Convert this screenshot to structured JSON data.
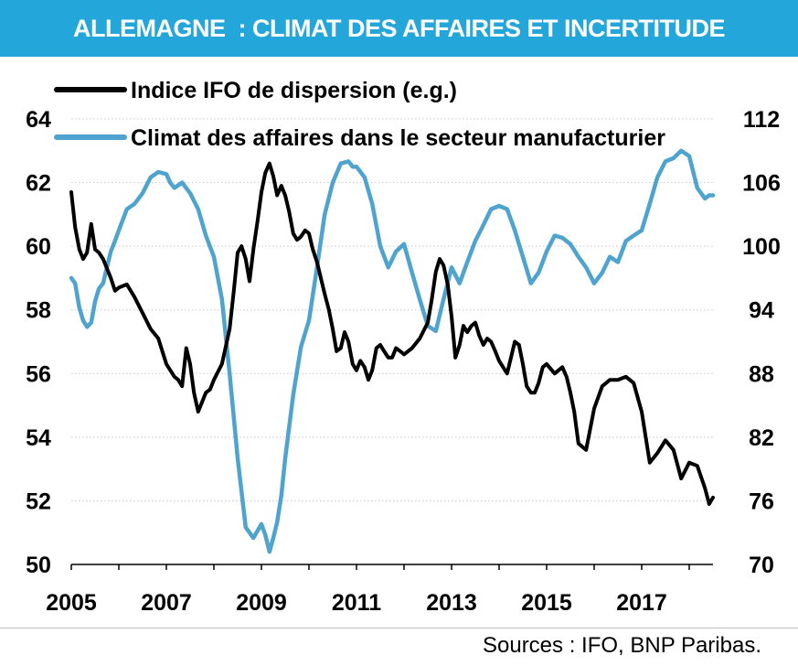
{
  "header": {
    "title": "ALLEMAGNE  : CLIMAT DES AFFAIRES ET INCERTITUDE",
    "bg_color": "#23a6d9",
    "text_color": "#ffffff"
  },
  "footer": {
    "source": "Sources : IFO, BNP Paribas."
  },
  "chart_data": {
    "type": "line",
    "title": "ALLEMAGNE  : CLIMAT DES AFFAIRES ET INCERTITUDE",
    "xlabel": "",
    "x_ticks": [
      "2005",
      "2007",
      "2009",
      "2011",
      "2013",
      "2015",
      "2017"
    ],
    "xlim": [
      2005,
      2018.5
    ],
    "left_axis": {
      "ticks": [
        "64",
        "62",
        "60",
        "58",
        "56",
        "54",
        "52",
        "50"
      ],
      "ylim": [
        50,
        64
      ]
    },
    "right_axis": {
      "ticks": [
        "112",
        "106",
        "100",
        "94",
        "88",
        "82",
        "76",
        "70"
      ],
      "ylim": [
        70,
        112
      ]
    },
    "grid": "horizontal dotted",
    "legend_placement": "top-left",
    "series": [
      {
        "name": "Indice IFO de dispersion (e.g.)",
        "color": "#000000",
        "axis": "left",
        "x": [
          2005.0,
          2005.08,
          2005.17,
          2005.25,
          2005.33,
          2005.42,
          2005.5,
          2005.58,
          2005.67,
          2005.75,
          2005.83,
          2005.92,
          2006.0,
          2006.17,
          2006.33,
          2006.5,
          2006.67,
          2006.83,
          2007.0,
          2007.17,
          2007.25,
          2007.33,
          2007.42,
          2007.5,
          2007.58,
          2007.67,
          2007.75,
          2007.83,
          2007.92,
          2008.0,
          2008.17,
          2008.33,
          2008.42,
          2008.5,
          2008.58,
          2008.67,
          2008.75,
          2008.83,
          2008.92,
          2009.0,
          2009.08,
          2009.17,
          2009.25,
          2009.33,
          2009.42,
          2009.5,
          2009.58,
          2009.67,
          2009.75,
          2009.83,
          2009.92,
          2010.0,
          2010.08,
          2010.17,
          2010.25,
          2010.33,
          2010.42,
          2010.5,
          2010.58,
          2010.67,
          2010.75,
          2010.83,
          2010.92,
          2011.0,
          2011.08,
          2011.17,
          2011.25,
          2011.33,
          2011.42,
          2011.5,
          2011.58,
          2011.67,
          2011.75,
          2011.83,
          2011.92,
          2012.0,
          2012.17,
          2012.33,
          2012.5,
          2012.58,
          2012.67,
          2012.75,
          2012.83,
          2012.92,
          2013.0,
          2013.08,
          2013.17,
          2013.25,
          2013.33,
          2013.42,
          2013.5,
          2013.58,
          2013.67,
          2013.75,
          2013.83,
          2013.92,
          2014.0,
          2014.17,
          2014.25,
          2014.33,
          2014.42,
          2014.5,
          2014.58,
          2014.67,
          2014.75,
          2014.83,
          2014.92,
          2015.0,
          2015.17,
          2015.33,
          2015.42,
          2015.5,
          2015.58,
          2015.67,
          2015.83,
          2016.0,
          2016.17,
          2016.33,
          2016.5,
          2016.67,
          2016.83,
          2017.0,
          2017.17,
          2017.33,
          2017.5,
          2017.67,
          2017.83,
          2018.0,
          2018.17,
          2018.33,
          2018.42
        ],
        "values": [
          61.7,
          60.6,
          59.9,
          59.6,
          59.8,
          60.7,
          59.9,
          59.8,
          59.6,
          59.3,
          59.0,
          58.6,
          58.7,
          58.8,
          58.4,
          57.9,
          57.4,
          57.1,
          56.3,
          55.9,
          55.8,
          55.6,
          56.8,
          56.3,
          55.4,
          54.8,
          55.1,
          55.4,
          55.5,
          55.8,
          56.3,
          57.4,
          58.6,
          59.8,
          60.0,
          59.6,
          58.9,
          59.9,
          60.8,
          61.7,
          62.3,
          62.6,
          62.2,
          61.6,
          61.9,
          61.6,
          61.1,
          60.4,
          60.2,
          60.3,
          60.5,
          60.4,
          59.9,
          59.5,
          59.0,
          58.5,
          58.0,
          57.4,
          56.7,
          56.8,
          57.3,
          57.0,
          56.3,
          56.1,
          56.4,
          56.2,
          55.8,
          56.1,
          56.8,
          56.9,
          56.7,
          56.5,
          56.5,
          56.8,
          56.7,
          56.6,
          56.8,
          57.1,
          57.6,
          58.3,
          59.2,
          59.6,
          59.4,
          58.8,
          57.8,
          56.5,
          56.9,
          57.5,
          57.3,
          57.5,
          57.6,
          57.2,
          56.9,
          57.1,
          57.0,
          56.7,
          56.4,
          56.0,
          56.5,
          57.0,
          56.9,
          56.3,
          55.6,
          55.4,
          55.4,
          55.7,
          56.2,
          56.3,
          56.0,
          56.2,
          55.9,
          55.4,
          54.8,
          53.8,
          53.6,
          54.9,
          55.6,
          55.8,
          55.8,
          55.9,
          55.7,
          54.8,
          53.2,
          53.5,
          53.9,
          53.6,
          52.7,
          53.2,
          53.1,
          52.4,
          51.9
        ],
        "end_point": {
          "x": 2018.5,
          "y": 52.1
        }
      },
      {
        "name": "Climat des affaires dans le secteur manufacturier",
        "color": "#4fa3cf",
        "axis": "right",
        "x": [
          2005.0,
          2005.08,
          2005.17,
          2005.25,
          2005.33,
          2005.42,
          2005.5,
          2005.58,
          2005.67,
          2005.75,
          2005.83,
          2005.92,
          2006.0,
          2006.17,
          2006.33,
          2006.5,
          2006.67,
          2006.83,
          2007.0,
          2007.08,
          2007.17,
          2007.33,
          2007.5,
          2007.67,
          2007.83,
          2008.0,
          2008.17,
          2008.33,
          2008.5,
          2008.67,
          2008.83,
          2009.0,
          2009.08,
          2009.17,
          2009.25,
          2009.33,
          2009.42,
          2009.5,
          2009.67,
          2009.83,
          2010.0,
          2010.17,
          2010.33,
          2010.5,
          2010.67,
          2010.83,
          2010.92,
          2011.0,
          2011.17,
          2011.33,
          2011.5,
          2011.67,
          2011.83,
          2012.0,
          2012.17,
          2012.33,
          2012.5,
          2012.67,
          2012.83,
          2013.0,
          2013.17,
          2013.33,
          2013.5,
          2013.67,
          2013.83,
          2014.0,
          2014.17,
          2014.33,
          2014.5,
          2014.67,
          2014.83,
          2015.0,
          2015.17,
          2015.33,
          2015.5,
          2015.67,
          2015.83,
          2016.0,
          2016.17,
          2016.33,
          2016.5,
          2016.67,
          2016.83,
          2017.0,
          2017.17,
          2017.33,
          2017.5,
          2017.67,
          2017.83,
          2018.0,
          2018.17,
          2018.33,
          2018.42
        ],
        "values": [
          97.0,
          96.5,
          94.2,
          93.0,
          92.4,
          92.8,
          94.8,
          96.0,
          96.5,
          98.0,
          99.5,
          100.5,
          101.5,
          103.5,
          104.0,
          105.0,
          106.5,
          107.0,
          106.8,
          106.0,
          105.5,
          106.0,
          105.0,
          103.5,
          101.0,
          99.0,
          95.0,
          88.0,
          80.0,
          73.5,
          72.5,
          73.8,
          72.8,
          71.2,
          72.5,
          74.0,
          76.5,
          80.0,
          86.0,
          90.5,
          93.0,
          98.0,
          103.0,
          106.0,
          107.8,
          108.0,
          107.5,
          107.5,
          106.5,
          104.0,
          100.0,
          98.0,
          99.5,
          100.2,
          97.5,
          95.0,
          92.5,
          92.0,
          95.0,
          98.0,
          96.5,
          98.5,
          100.5,
          102.0,
          103.5,
          103.8,
          103.5,
          101.5,
          99.0,
          96.5,
          97.5,
          99.5,
          101.0,
          100.8,
          100.2,
          99.0,
          98.0,
          96.5,
          97.5,
          99.0,
          98.5,
          100.5,
          101.0,
          101.5,
          104.0,
          106.5,
          108.0,
          108.3,
          109.0,
          108.5,
          105.5,
          104.5,
          104.8
        ],
        "end_point": {
          "x": 2018.5,
          "y": 104.8
        }
      }
    ]
  }
}
